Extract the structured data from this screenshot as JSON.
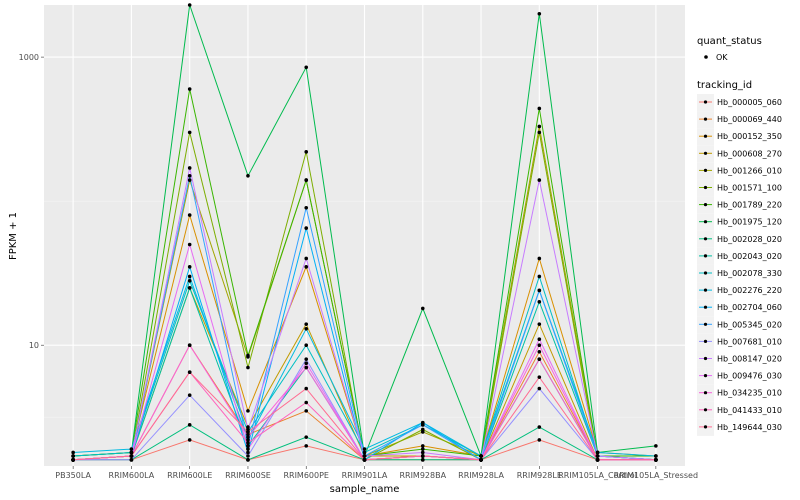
{
  "chart_data": {
    "type": "line",
    "xlabel": "sample_name",
    "ylabel": "FPKM + 1",
    "y_scale": "log10",
    "ylim": [
      1.45,
      2300
    ],
    "y_ticks": [
      10,
      1000
    ],
    "y_tick_labels": [
      "10",
      "1000"
    ],
    "grid": true,
    "legend_position": "right",
    "categories": [
      "PB350LA",
      "RRIM600LA",
      "RRIM600LE",
      "RRIM600SE",
      "RRIM600PE",
      "RRIM901LA",
      "RRIM928BA",
      "RRIM928LA",
      "RRIM928LE",
      "RRIM105LA_Control",
      "RRIM105LA_Stressed"
    ],
    "legend_shape": {
      "title": "quant_status",
      "entries": [
        "OK"
      ]
    },
    "legend_color": {
      "title": "tracking_id"
    },
    "series": [
      {
        "name": "Hb_000005_060",
        "color": "#F8766D",
        "values": [
          1.6,
          1.6,
          2.2,
          1.6,
          2.0,
          1.6,
          1.6,
          1.6,
          2.2,
          1.6,
          1.6
        ]
      },
      {
        "name": "Hb_000069_440",
        "color": "#EA8331",
        "values": [
          1.6,
          1.7,
          10.0,
          2.4,
          3.5,
          1.6,
          1.7,
          1.6,
          9.0,
          1.6,
          1.6
        ]
      },
      {
        "name": "Hb_000152_350",
        "color": "#D89000",
        "values": [
          1.7,
          1.8,
          80.0,
          3.5,
          35.0,
          1.7,
          2.0,
          1.7,
          40.0,
          1.8,
          1.7
        ]
      },
      {
        "name": "Hb_000608_270",
        "color": "#C09B00",
        "values": [
          1.6,
          1.7,
          25.0,
          2.7,
          14.0,
          1.7,
          1.7,
          1.6,
          14.0,
          1.6,
          1.6
        ]
      },
      {
        "name": "Hb_001266_010",
        "color": "#A3A500",
        "values": [
          1.6,
          1.7,
          140.0,
          8.3,
          140.0,
          1.7,
          2.5,
          1.7,
          330.0,
          1.7,
          1.6
        ]
      },
      {
        "name": "Hb_001571_100",
        "color": "#7CAE00",
        "values": [
          1.6,
          1.7,
          300.0,
          7.0,
          220.0,
          1.6,
          2.6,
          1.6,
          300.0,
          1.6,
          1.6
        ]
      },
      {
        "name": "Hb_001789_220",
        "color": "#39B600",
        "values": [
          1.7,
          1.8,
          600.0,
          8.5,
          140.0,
          1.7,
          1.9,
          1.7,
          440.0,
          1.7,
          1.7
        ]
      },
      {
        "name": "Hb_001975_120",
        "color": "#00BB4E",
        "values": [
          1.7,
          1.8,
          2300.0,
          150.0,
          850.0,
          1.7,
          18.0,
          1.7,
          2000.0,
          1.8,
          2.0
        ]
      },
      {
        "name": "Hb_002028_020",
        "color": "#00BF7D",
        "values": [
          1.6,
          1.6,
          2.8,
          1.6,
          2.3,
          1.6,
          1.6,
          1.6,
          2.7,
          1.6,
          1.6
        ]
      },
      {
        "name": "Hb_002043_020",
        "color": "#00C1A3",
        "values": [
          1.6,
          1.7,
          25.0,
          2.0,
          7.0,
          1.6,
          1.7,
          1.6,
          20.0,
          1.7,
          1.6
        ]
      },
      {
        "name": "Hb_002078_330",
        "color": "#00BFC4",
        "values": [
          1.7,
          1.8,
          28.0,
          2.5,
          10.0,
          1.8,
          2.8,
          1.7,
          30.0,
          1.7,
          1.6
        ]
      },
      {
        "name": "Hb_002276_220",
        "color": "#00BAE0",
        "values": [
          1.8,
          1.9,
          30.0,
          2.2,
          13.0,
          1.9,
          2.9,
          1.7,
          24.0,
          1.8,
          1.7
        ]
      },
      {
        "name": "Hb_002704_060",
        "color": "#00B0F6",
        "values": [
          1.6,
          1.7,
          35.0,
          1.8,
          65.0,
          1.6,
          2.9,
          1.6,
          8.0,
          1.6,
          1.6
        ]
      },
      {
        "name": "Hb_005345_020",
        "color": "#35A2FF",
        "values": [
          1.6,
          1.7,
          150.0,
          2.0,
          90.0,
          1.7,
          2.8,
          1.6,
          24.0,
          1.7,
          1.6
        ]
      },
      {
        "name": "Hb_007681_010",
        "color": "#9590FF",
        "values": [
          1.6,
          1.6,
          4.5,
          1.7,
          8.0,
          1.6,
          1.7,
          1.6,
          5.0,
          1.6,
          1.6
        ]
      },
      {
        "name": "Hb_008147_020",
        "color": "#C77CFF",
        "values": [
          1.6,
          1.7,
          170.0,
          2.6,
          40.0,
          1.7,
          1.8,
          1.6,
          140.0,
          1.7,
          1.6
        ]
      },
      {
        "name": "Hb_009476_030",
        "color": "#E76BF3",
        "values": [
          1.6,
          1.7,
          50.0,
          1.9,
          7.5,
          1.6,
          1.7,
          1.6,
          11.0,
          1.6,
          1.6
        ]
      },
      {
        "name": "Hb_034235_010",
        "color": "#FA62DB",
        "values": [
          1.6,
          1.7,
          10.0,
          2.3,
          7.0,
          1.6,
          1.7,
          1.6,
          10.0,
          1.6,
          1.6
        ]
      },
      {
        "name": "Hb_041433_010",
        "color": "#FF62BC",
        "values": [
          1.6,
          1.7,
          6.5,
          2.1,
          4.0,
          1.6,
          1.7,
          1.6,
          8.0,
          1.6,
          1.6
        ]
      },
      {
        "name": "Hb_149644_030",
        "color": "#FF6C91",
        "values": [
          1.6,
          1.7,
          6.5,
          2.5,
          5.0,
          1.6,
          1.7,
          1.6,
          6.0,
          1.6,
          1.6
        ]
      }
    ]
  }
}
